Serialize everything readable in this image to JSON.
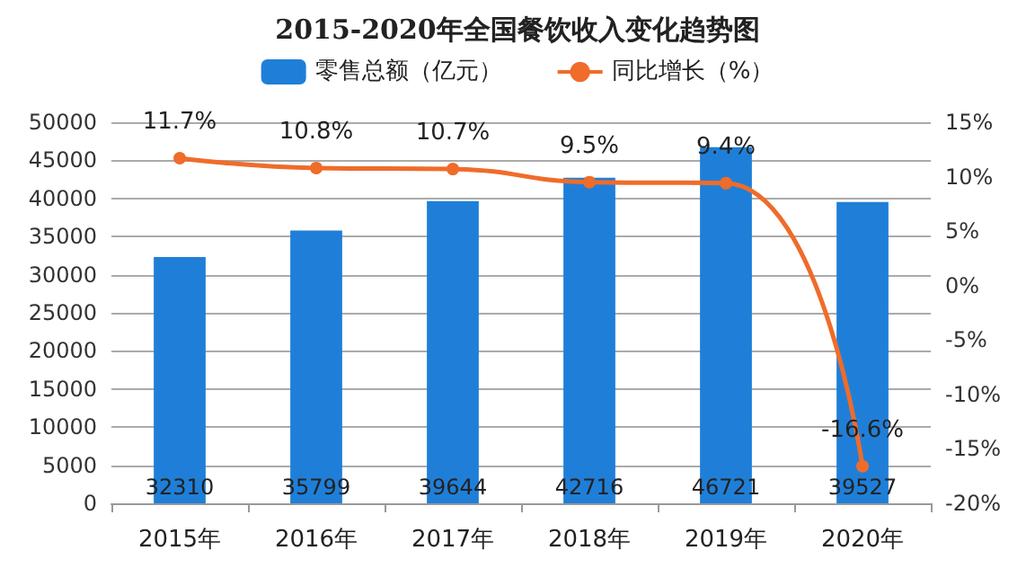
{
  "chart_data": {
    "type": "bar",
    "title": "2015-2020年全国餐饮收入变化趋势图",
    "categories": [
      "2015年",
      "2016年",
      "2017年",
      "2018年",
      "2019年",
      "2020年"
    ],
    "series": [
      {
        "name": "零售总额（亿元）",
        "color": "#1f7fd8",
        "values": [
          32310,
          35799,
          39644,
          42716,
          46721,
          39527
        ],
        "value_labels": [
          "32310",
          "35799",
          "39644",
          "42716",
          "46721",
          "39527"
        ]
      },
      {
        "name": "同比增长（%）",
        "type": "line",
        "axis": "y2",
        "color": "#ef6c2a",
        "values": [
          11.7,
          10.8,
          10.7,
          9.5,
          9.4,
          -16.6
        ],
        "value_labels": [
          "11.7%",
          "10.8%",
          "10.7%",
          "9.5%",
          "9.4%",
          "-16.6%"
        ]
      }
    ],
    "ylim": [
      0,
      50000
    ],
    "yticks": [
      0,
      5000,
      10000,
      15000,
      20000,
      25000,
      30000,
      35000,
      40000,
      45000,
      50000
    ],
    "y2lim": [
      -20,
      15
    ],
    "y2ticks": [
      {
        "value": -20,
        "label": "-20%"
      },
      {
        "value": -15,
        "label": "-15%"
      },
      {
        "value": -10,
        "label": "-10%"
      },
      {
        "value": -5,
        "label": "-5%"
      },
      {
        "value": 0,
        "label": "0%"
      },
      {
        "value": 5,
        "label": "5%"
      },
      {
        "value": 10,
        "label": "10%"
      },
      {
        "value": 15,
        "label": "15%"
      }
    ],
    "grid": "y",
    "legend": "top",
    "marker": "circle",
    "line_style": "solid"
  }
}
